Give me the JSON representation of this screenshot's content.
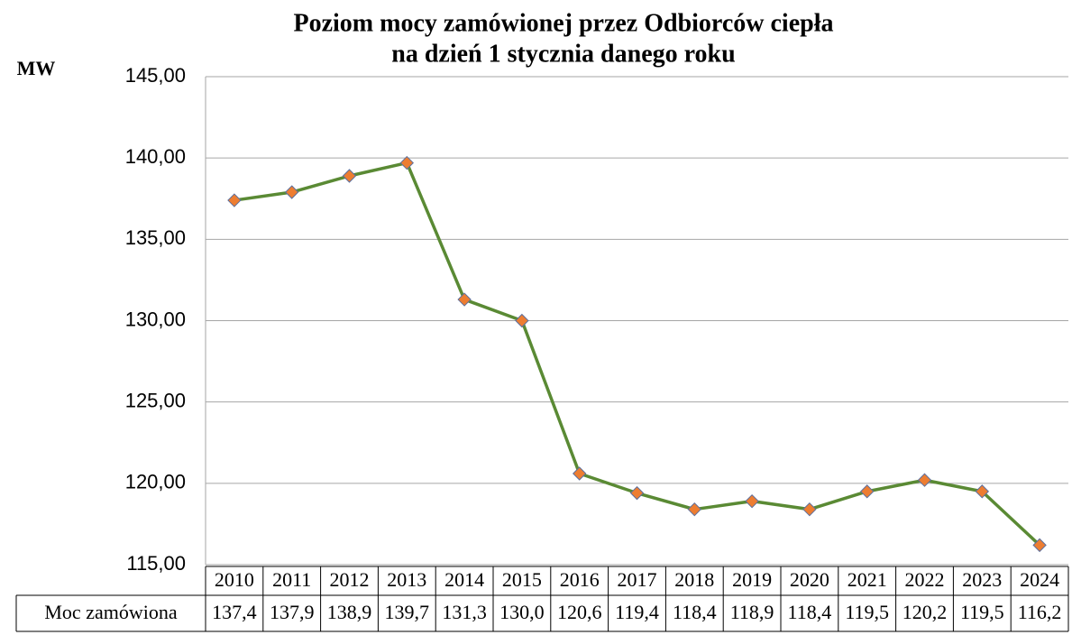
{
  "chart_data": {
    "type": "line",
    "title": [
      "Poziom  mocy zamówionej przez Odbiorców ciepła",
      "na dzień 1 stycznia danego roku"
    ],
    "ylabel": "MW",
    "categories": [
      "2010",
      "2011",
      "2012",
      "2013",
      "2014",
      "2015",
      "2016",
      "2017",
      "2018",
      "2019",
      "2020",
      "2021",
      "2022",
      "2023",
      "2024"
    ],
    "series": [
      {
        "name": "Moc zamówiona",
        "color": "#5a8a34",
        "marker_color": "#ed7d31",
        "values": [
          137.4,
          137.9,
          138.9,
          139.7,
          131.3,
          130.0,
          120.6,
          119.4,
          118.4,
          118.9,
          118.4,
          119.5,
          120.2,
          119.5,
          116.2
        ],
        "value_labels": [
          "137,4",
          "137,9",
          "138,9",
          "139,7",
          "131,3",
          "130,0",
          "120,6",
          "119,4",
          "118,4",
          "118,9",
          "118,4",
          "119,5",
          "120,2",
          "119,5",
          "116,2"
        ]
      }
    ],
    "ylim": [
      115,
      145
    ],
    "yticks": [
      {
        "value": 115,
        "label": "115,00"
      },
      {
        "value": 120,
        "label": "120,00"
      },
      {
        "value": 125,
        "label": "125,00"
      },
      {
        "value": 130,
        "label": "130,00"
      },
      {
        "value": 135,
        "label": "135,00"
      },
      {
        "value": 140,
        "label": "140,00"
      },
      {
        "value": 145,
        "label": "145,00"
      }
    ],
    "grid": true
  }
}
